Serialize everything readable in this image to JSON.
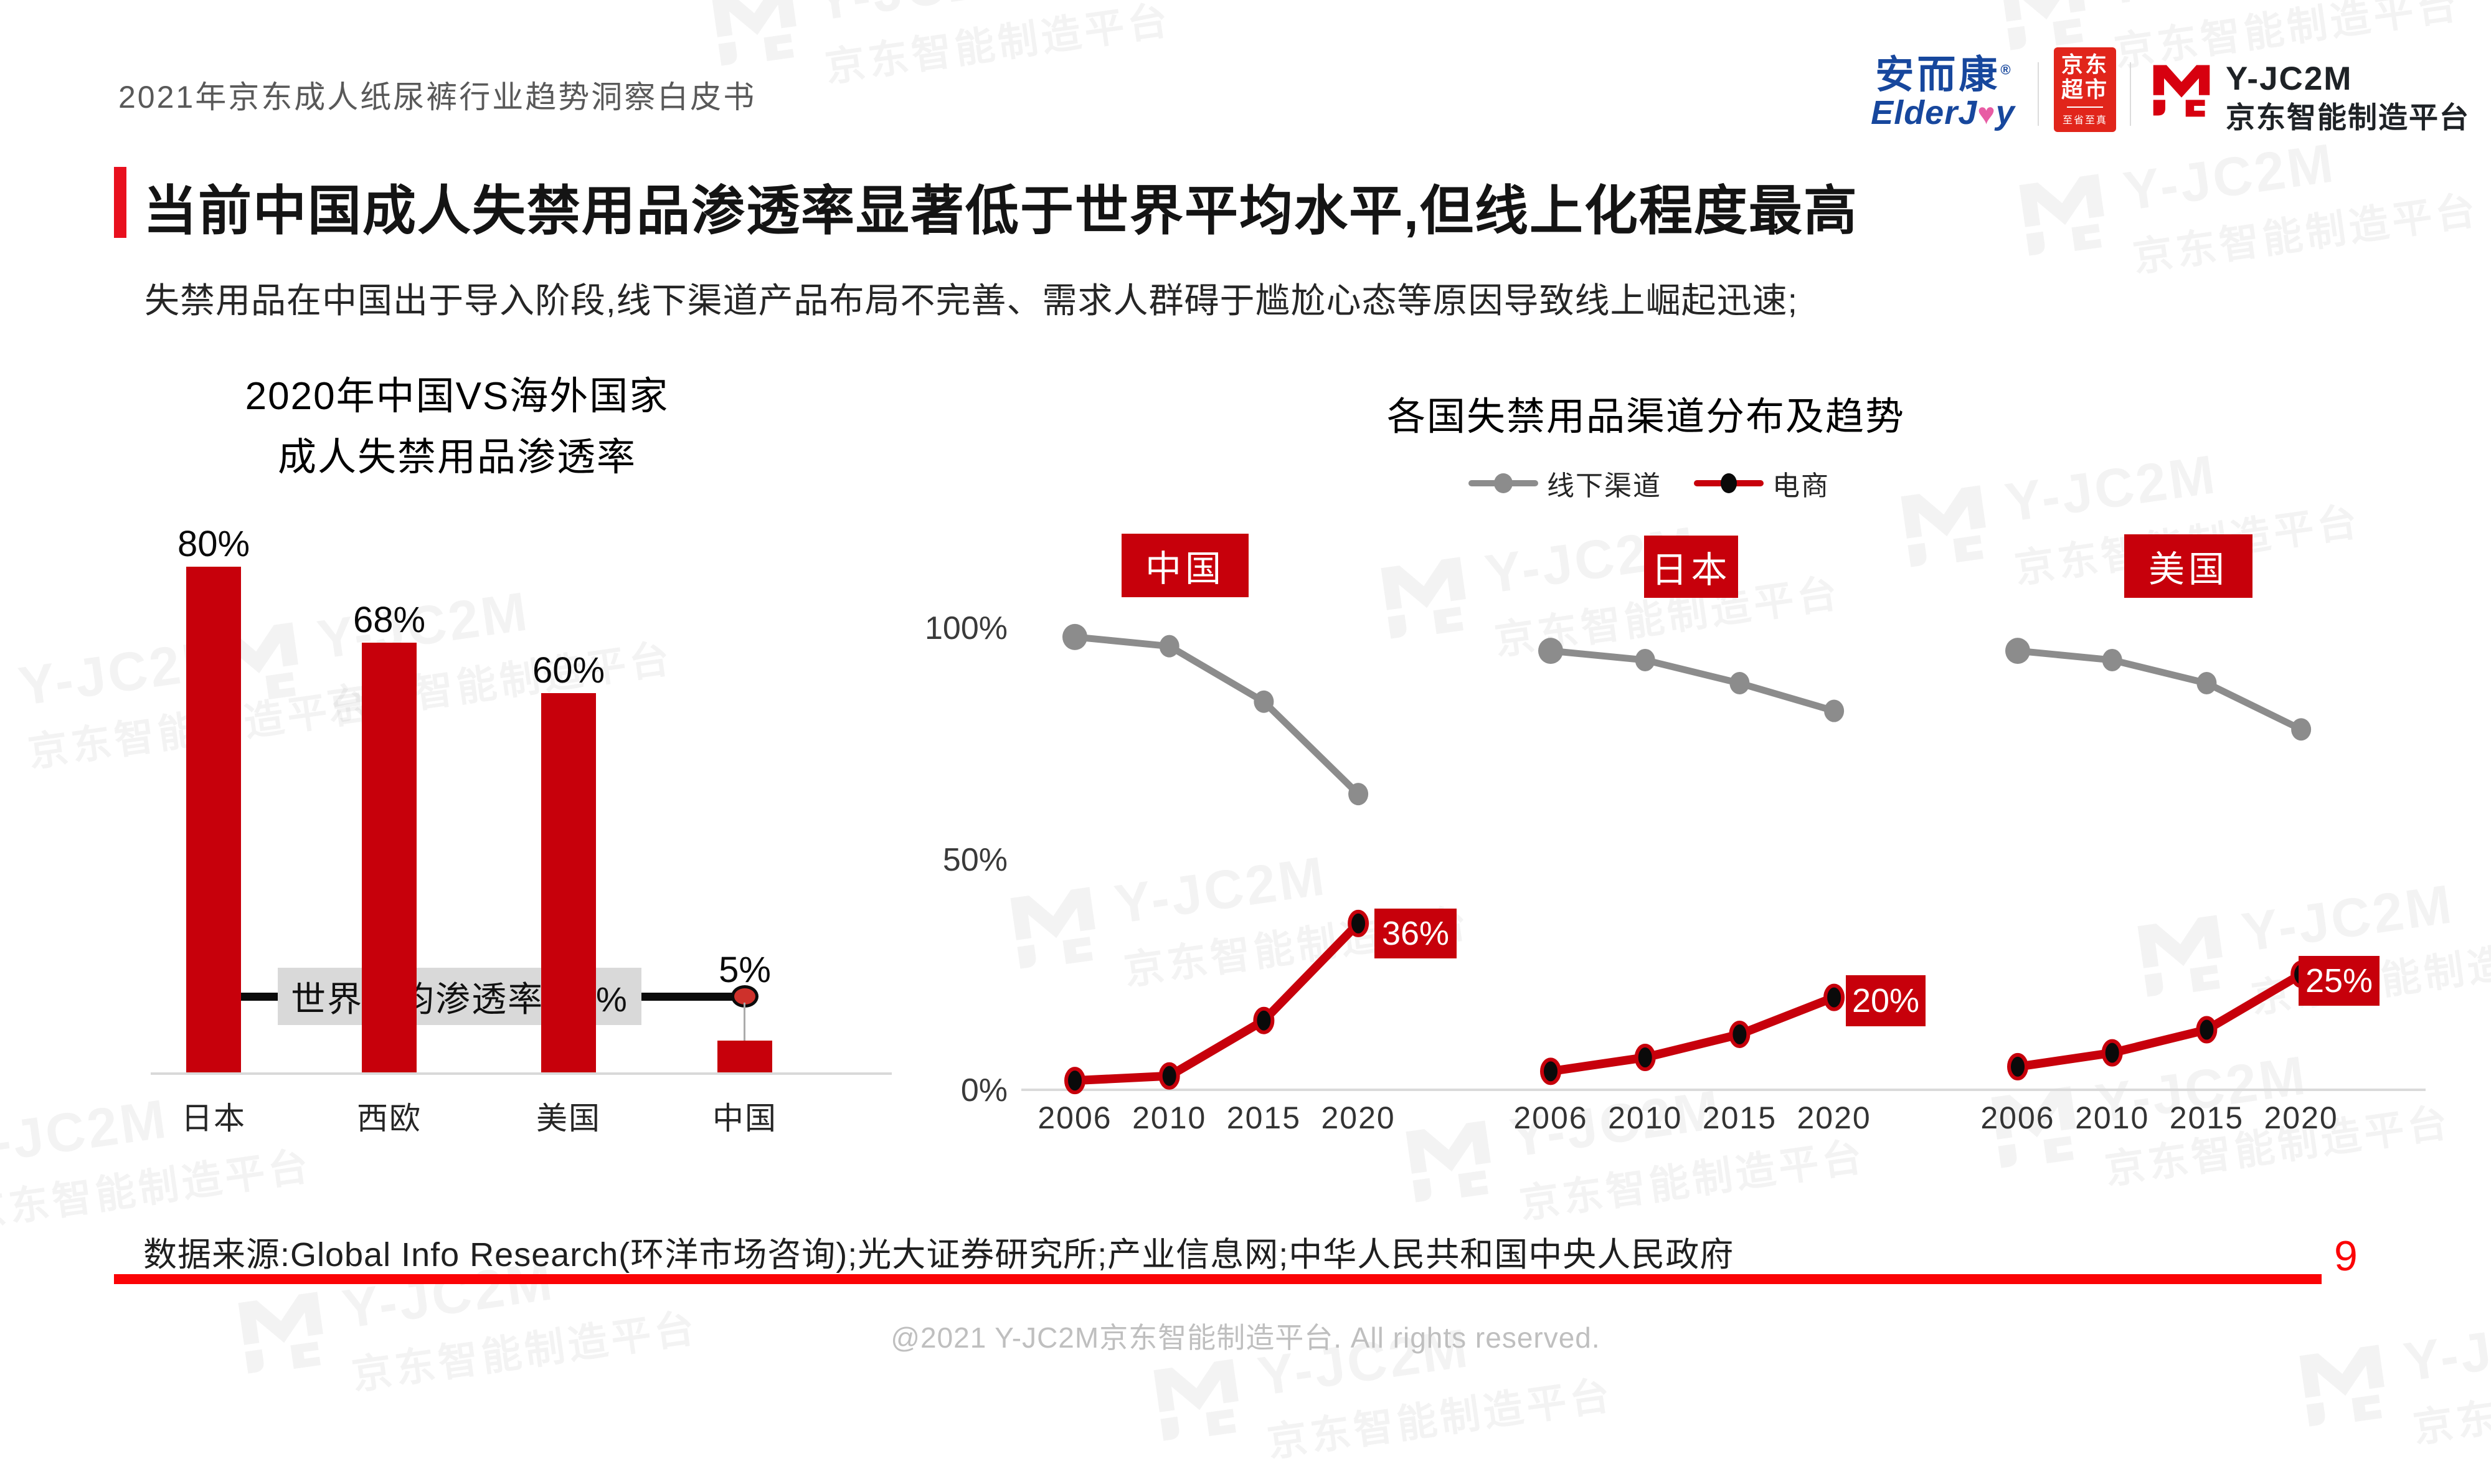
{
  "header": {
    "doc_title": "2021年京东成人纸尿裤行业趋势洞察白皮书"
  },
  "logos": {
    "elderjoy_cn": "安而康",
    "elderjoy_reg": "®",
    "elderjoy_en_pre": "ElderJ",
    "elderjoy_heart": "♥",
    "elderjoy_en_post": "y",
    "jd_market_line1": "京东",
    "jd_market_line2": "超市",
    "jd_market_sub": "至省至真",
    "yjc2m_name": "Y-JC2M",
    "yjc2m_sub": "京东智能制造平台"
  },
  "title_block": {
    "title": "当前中国成人失禁用品渗透率显著低于世界平均水平,但线上化程度最高"
  },
  "subtitle": "失禁用品在中国出于导入阶段,线下渠道产品布局不完善、需求人群碍于尴尬心态等原因导致线上崛起迅速;",
  "chart_data": [
    {
      "type": "bar",
      "title_line1": "2020年中国VS海外国家",
      "title_line2": "成人失禁用品渗透率",
      "categories": [
        "日本",
        "西欧",
        "美国",
        "中国"
      ],
      "values": [
        80,
        68,
        60,
        5
      ],
      "value_labels": [
        "80%",
        "68%",
        "60%",
        "5%"
      ],
      "ylim": [
        0,
        100
      ],
      "grid": false,
      "bar_color": "#C7000B",
      "reference_line": {
        "label": "世界平均渗透率 12%",
        "value": 12
      }
    },
    {
      "type": "line",
      "title": "各国失禁用品渠道分布及趋势",
      "legend": [
        {
          "name": "线下渠道",
          "color": "#8C8C8C"
        },
        {
          "name": "电商",
          "color": "#C7000B"
        }
      ],
      "legend_position": "top",
      "x": [
        "2006",
        "2010",
        "2015",
        "2020"
      ],
      "y_ticks": [
        "100%",
        "50%",
        "0%"
      ],
      "ylim": [
        0,
        100
      ],
      "grid": false,
      "panels": [
        {
          "country": "中国",
          "series": [
            {
              "name": "线下渠道",
              "values": [
                98,
                96,
                84,
                64
              ]
            },
            {
              "name": "电商",
              "values": [
                2,
                3,
                15,
                36
              ]
            }
          ],
          "end_label": "36%"
        },
        {
          "country": "日本",
          "series": [
            {
              "name": "线下渠道",
              "values": [
                95,
                93,
                88,
                82
              ]
            },
            {
              "name": "电商",
              "values": [
                4,
                7,
                12,
                20
              ]
            }
          ],
          "end_label": "20%"
        },
        {
          "country": "美国",
          "series": [
            {
              "name": "线下渠道",
              "values": [
                95,
                93,
                88,
                78
              ]
            },
            {
              "name": "电商",
              "values": [
                5,
                8,
                13,
                25
              ]
            }
          ],
          "end_label": "25%"
        }
      ]
    }
  ],
  "footer": {
    "source": "数据来源:Global Info Research(环洋市场咨询);光大证券研究所;产业信息网;中华人民共和国中央人民政府",
    "page_number": "9",
    "copyright": "@2021 Y-JC2M京东智能制造平台. All rights reserved."
  },
  "watermark": {
    "brand": "Y-JC2M",
    "sub": "京东智能制造平台"
  },
  "colors": {
    "chart_red": "#C7000B",
    "offline_gray": "#8C8C8C",
    "accent_red": "#E8101E",
    "bottom_line_red": "#FB0306",
    "jd_badge_red": "#E1251B",
    "elderjoy_blue": "#17479D",
    "ref_box_gray": "#D9D9D9"
  }
}
